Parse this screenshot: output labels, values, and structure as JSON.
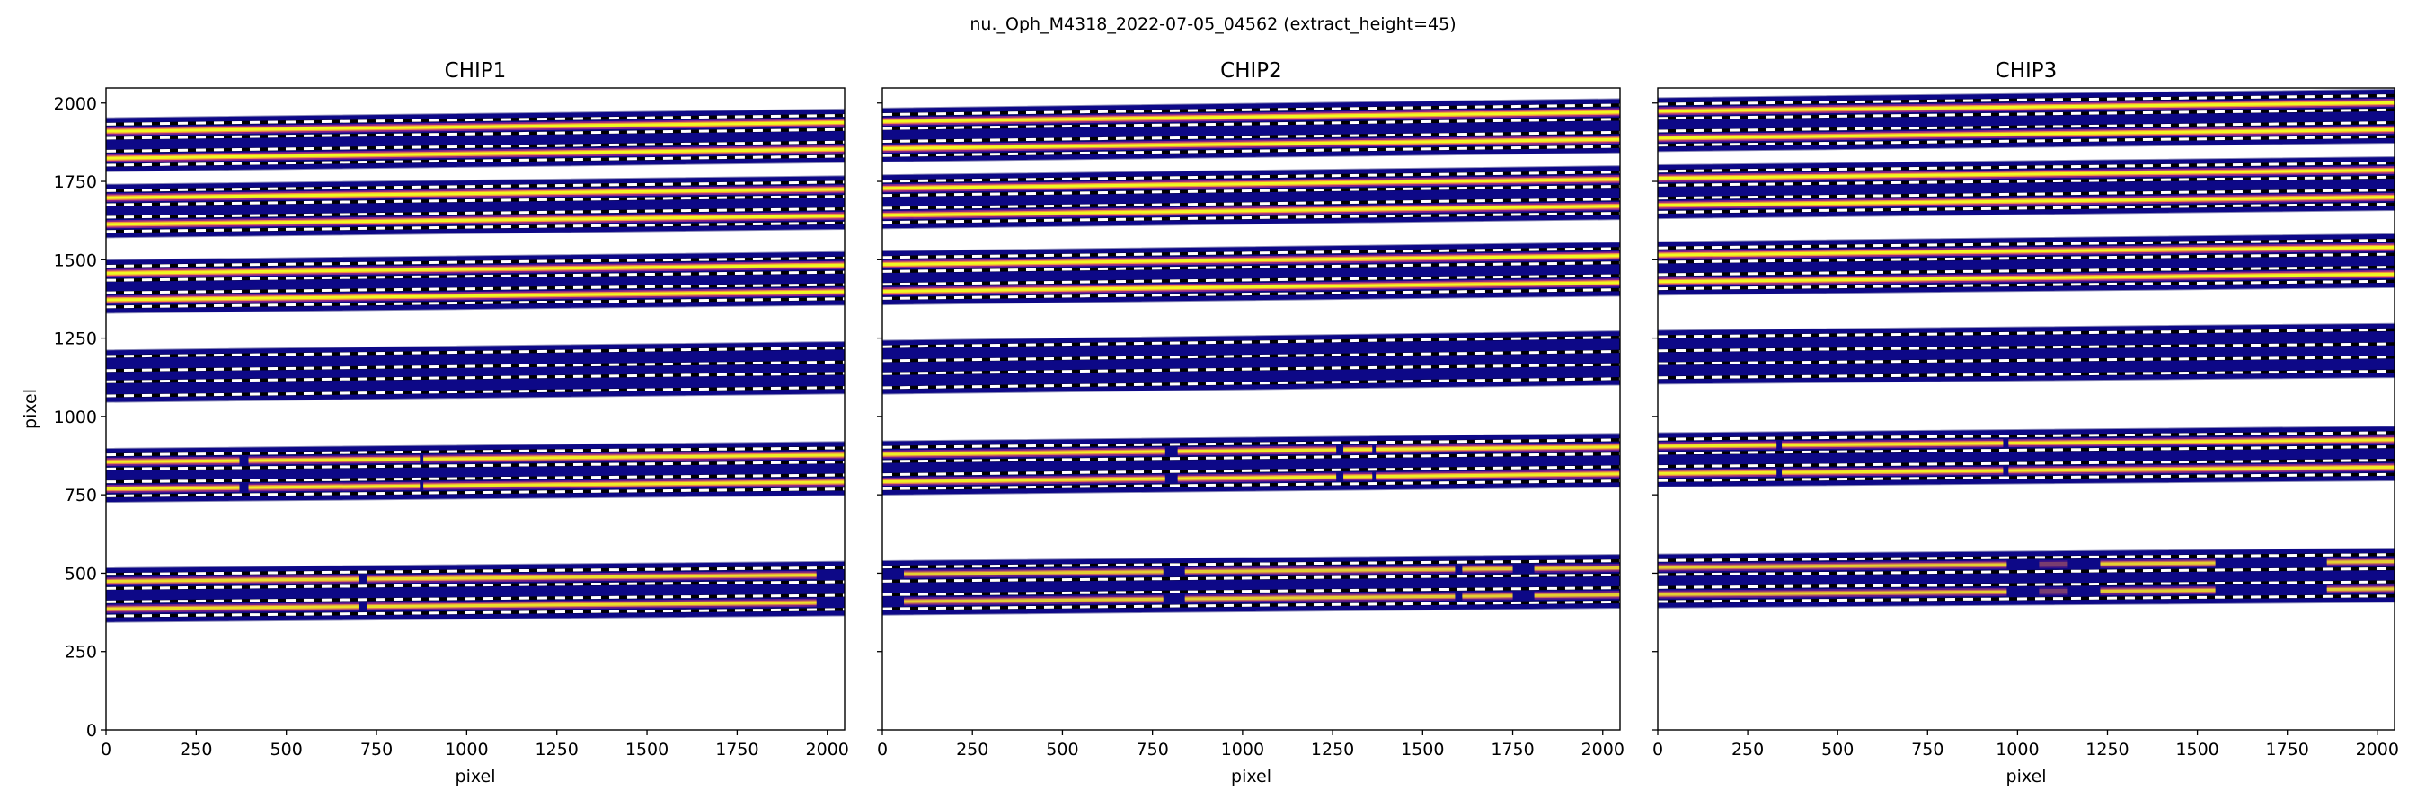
{
  "figure": {
    "suptitle": "nu._Oph_M4318_2022-07-05_04562  (extract_height=45)"
  },
  "colors": {
    "background_band": "#0d0887",
    "trace_core": "#f0f921",
    "trace_mid": "#f89540",
    "trace_halo": "#b52f8c",
    "aperture_dash": "#ffffff",
    "aperture_line": "#000000"
  },
  "chart_data": [
    {
      "type": "heatmap",
      "title": "CHIP1",
      "xlabel": "pixel",
      "ylabel": "pixel",
      "xlim": [
        0,
        2048
      ],
      "ylim": [
        0,
        2048
      ],
      "extract_height": 45,
      "xticks": [
        0,
        250,
        500,
        750,
        1000,
        1250,
        1500,
        1750,
        2000
      ],
      "xtick_labels": [
        "0",
        "250",
        "500",
        "750",
        "1000",
        "1250",
        "1500",
        "1750",
        "2000"
      ],
      "yticks": [
        0,
        250,
        500,
        750,
        1000,
        1250,
        1500,
        1750,
        2000
      ],
      "ytick_labels": [
        "0",
        "250",
        "500",
        "750",
        "1000",
        "1250",
        "1500",
        "1750",
        "2000"
      ],
      "orders": [
        {
          "traces": [
            {
              "y_at_x0": 1910,
              "y_at_xmax": 1938
            },
            {
              "y_at_x0": 1824,
              "y_at_xmax": 1853
            }
          ],
          "brightness": 1.0,
          "segments": [
            [
              0,
              2048
            ]
          ]
        },
        {
          "traces": [
            {
              "y_at_x0": 1698,
              "y_at_xmax": 1725
            },
            {
              "y_at_x0": 1613,
              "y_at_xmax": 1640
            }
          ],
          "brightness": 1.0,
          "segments": [
            [
              0,
              2048
            ]
          ]
        },
        {
          "traces": [
            {
              "y_at_x0": 1457,
              "y_at_xmax": 1483
            },
            {
              "y_at_x0": 1372,
              "y_at_xmax": 1398
            }
          ],
          "brightness": 1.0,
          "segments": [
            [
              0,
              2048
            ]
          ]
        },
        {
          "traces": [
            {
              "y_at_x0": 1169,
              "y_at_xmax": 1196
            },
            {
              "y_at_x0": 1088,
              "y_at_xmax": 1115
            }
          ],
          "brightness": 0.0,
          "segments": []
        },
        {
          "traces": [
            {
              "y_at_x0": 855,
              "y_at_xmax": 877
            },
            {
              "y_at_x0": 769,
              "y_at_xmax": 791
            }
          ],
          "brightness": 0.9,
          "segments": [
            [
              0,
              370
            ],
            [
              395,
              870
            ],
            [
              880,
              2048
            ]
          ]
        },
        {
          "traces": [
            {
              "y_at_x0": 474,
              "y_at_xmax": 495
            },
            {
              "y_at_x0": 386,
              "y_at_xmax": 407
            }
          ],
          "brightness": 0.8,
          "segments": [
            [
              0,
              700
            ],
            [
              725,
              1970
            ]
          ]
        }
      ]
    },
    {
      "type": "heatmap",
      "title": "CHIP2",
      "xlabel": "pixel",
      "ylabel": "",
      "xlim": [
        0,
        2048
      ],
      "ylim": [
        0,
        2048
      ],
      "extract_height": 45,
      "xticks": [
        0,
        250,
        500,
        750,
        1000,
        1250,
        1500,
        1750,
        2000
      ],
      "xtick_labels": [
        "0",
        "250",
        "500",
        "750",
        "1000",
        "1250",
        "1500",
        "1750",
        "2000"
      ],
      "yticks": [
        0,
        250,
        500,
        750,
        1000,
        1250,
        1500,
        1750,
        2000
      ],
      "ytick_labels": [],
      "orders": [
        {
          "traces": [
            {
              "y_at_x0": 1941,
              "y_at_xmax": 1971
            },
            {
              "y_at_x0": 1855,
              "y_at_xmax": 1884
            }
          ],
          "brightness": 1.0,
          "segments": [
            [
              0,
              2048
            ]
          ]
        },
        {
          "traces": [
            {
              "y_at_x0": 1728,
              "y_at_xmax": 1757
            },
            {
              "y_at_x0": 1642,
              "y_at_xmax": 1671
            }
          ],
          "brightness": 1.0,
          "segments": [
            [
              0,
              2048
            ]
          ]
        },
        {
          "traces": [
            {
              "y_at_x0": 1485,
              "y_at_xmax": 1513
            },
            {
              "y_at_x0": 1399,
              "y_at_xmax": 1427
            }
          ],
          "brightness": 1.0,
          "segments": [
            [
              0,
              2048
            ]
          ]
        },
        {
          "traces": [
            {
              "y_at_x0": 1200,
              "y_at_xmax": 1230
            },
            {
              "y_at_x0": 1114,
              "y_at_xmax": 1143
            }
          ],
          "brightness": 0.0,
          "segments": []
        },
        {
          "traces": [
            {
              "y_at_x0": 879,
              "y_at_xmax": 903
            },
            {
              "y_at_x0": 792,
              "y_at_xmax": 817
            }
          ],
          "brightness": 0.9,
          "segments": [
            [
              0,
              785
            ],
            [
              820,
              1260
            ],
            [
              1280,
              1360
            ],
            [
              1370,
              2048
            ]
          ]
        },
        {
          "traces": [
            {
              "y_at_x0": 497,
              "y_at_xmax": 517
            },
            {
              "y_at_x0": 409,
              "y_at_xmax": 431
            }
          ],
          "brightness": 0.7,
          "segments": [
            [
              60,
              780
            ],
            [
              840,
              1590
            ],
            [
              1610,
              1750
            ],
            [
              1810,
              2048
            ]
          ]
        }
      ]
    },
    {
      "type": "heatmap",
      "title": "CHIP3",
      "xlabel": "pixel",
      "ylabel": "",
      "xlim": [
        0,
        2048
      ],
      "ylim": [
        0,
        2048
      ],
      "extract_height": 45,
      "xticks": [
        0,
        250,
        500,
        750,
        1000,
        1250,
        1500,
        1750,
        2000
      ],
      "xtick_labels": [
        "0",
        "250",
        "500",
        "750",
        "1000",
        "1250",
        "1500",
        "1750",
        "2000"
      ],
      "yticks": [
        0,
        250,
        500,
        750,
        1000,
        1250,
        1500,
        1750,
        2000
      ],
      "ytick_labels": [],
      "orders": [
        {
          "traces": [
            {
              "y_at_x0": 1974,
              "y_at_xmax": 2001
            },
            {
              "y_at_x0": 1888,
              "y_at_xmax": 1915
            }
          ],
          "brightness": 1.0,
          "segments": [
            [
              0,
              2048
            ]
          ]
        },
        {
          "traces": [
            {
              "y_at_x0": 1760,
              "y_at_xmax": 1786
            },
            {
              "y_at_x0": 1674,
              "y_at_xmax": 1700
            }
          ],
          "brightness": 1.0,
          "segments": [
            [
              0,
              2048
            ]
          ]
        },
        {
          "traces": [
            {
              "y_at_x0": 1515,
              "y_at_xmax": 1540
            },
            {
              "y_at_x0": 1430,
              "y_at_xmax": 1454
            }
          ],
          "brightness": 1.0,
          "segments": [
            [
              0,
              2048
            ]
          ]
        },
        {
          "traces": [
            {
              "y_at_x0": 1232,
              "y_at_xmax": 1254
            },
            {
              "y_at_x0": 1146,
              "y_at_xmax": 1167
            }
          ],
          "brightness": 0.0,
          "segments": []
        },
        {
          "traces": [
            {
              "y_at_x0": 905,
              "y_at_xmax": 926
            },
            {
              "y_at_x0": 818,
              "y_at_xmax": 838
            }
          ],
          "brightness": 0.9,
          "segments": [
            [
              0,
              330
            ],
            [
              345,
              960
            ],
            [
              975,
              2048
            ]
          ]
        },
        {
          "traces": [
            {
              "y_at_x0": 518,
              "y_at_xmax": 537
            },
            {
              "y_at_x0": 432,
              "y_at_xmax": 450
            }
          ],
          "brightness": 0.7,
          "segments": [
            [
              0,
              970
            ],
            [
              1060,
              1140
            ],
            [
              1230,
              1550
            ],
            [
              1860,
              2048
            ]
          ]
        }
      ]
    }
  ]
}
